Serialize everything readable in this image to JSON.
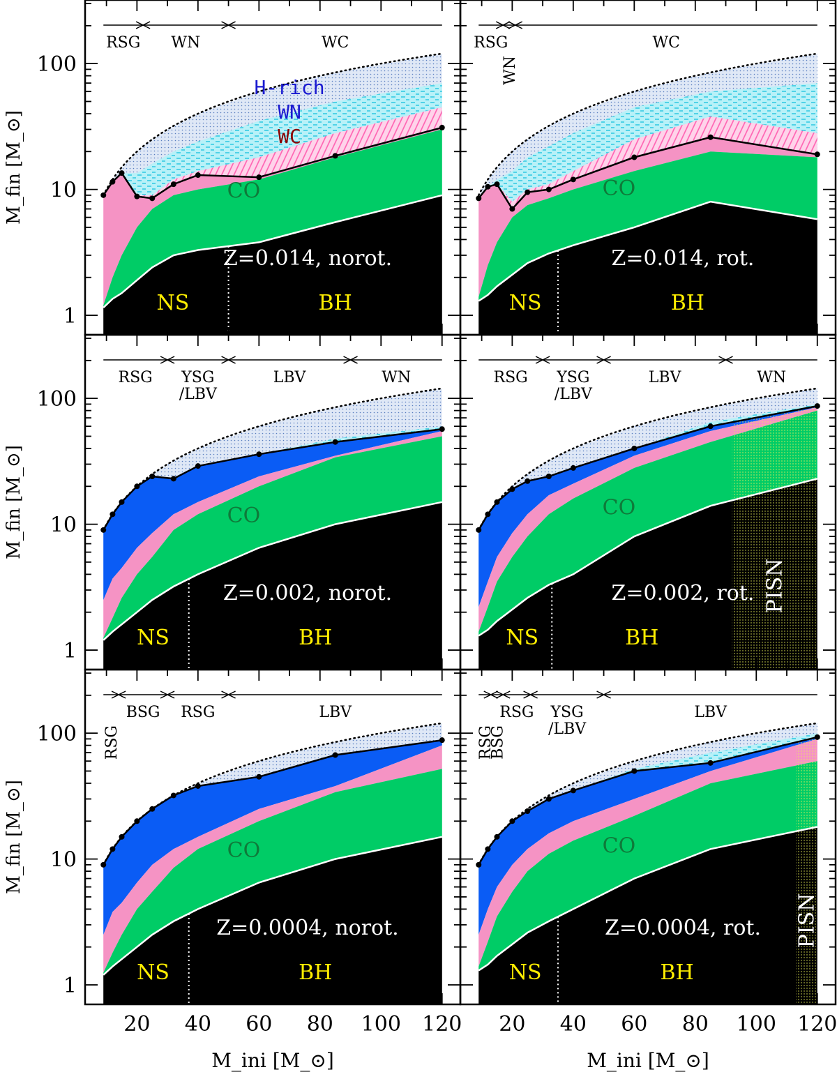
{
  "figure": {
    "y_axis_label": "M_fin [M_⊙]",
    "x_axis_label": "M_ini [M_⊙]",
    "region_labels": {
      "co": "CO",
      "ns": "NS",
      "bh": "BH",
      "pisn": "PISN"
    },
    "composition_legend": [
      "H-rich",
      "WN",
      "WC"
    ],
    "colors": {
      "remnant": "#000000",
      "co_core": "#00cc66",
      "he_layer": "#f593c4",
      "h_envelope": "#0a5cf5",
      "wn_ejecta": "#2ad0e8",
      "wc_ejecta": "#ff7fbf",
      "hrich_ejecta": "#7da2d6",
      "label_yellow": "#ffee00",
      "label_co": "#0f7a3a",
      "hrich_text": "#1a1ad0",
      "wn_text": "#1a1ad0",
      "wc_text": "#8b0000"
    }
  },
  "chart_data": [
    {
      "type": "area",
      "title": "Z=0.014, norot.",
      "x_ticks": [
        20,
        40,
        60,
        80,
        100,
        120
      ],
      "y_ticks": [
        1,
        10,
        100
      ],
      "xlim": [
        3,
        126
      ],
      "ylim": [
        0.7,
        320
      ],
      "log_y": true,
      "ns_bh_boundary": 50,
      "x": [
        9,
        12,
        15,
        20,
        25,
        32,
        40,
        60,
        85,
        120
      ],
      "m_final": [
        9,
        11.5,
        13.5,
        8.8,
        8.5,
        11,
        13,
        12.5,
        18.5,
        31
      ],
      "he_top": [
        9,
        11.5,
        13.5,
        8.8,
        8.5,
        11,
        13,
        12.5,
        18.5,
        31
      ],
      "co_top": [
        1.2,
        2,
        3,
        5,
        7,
        9,
        10,
        12,
        18,
        30
      ],
      "remnant": [
        1.15,
        1.35,
        1.5,
        1.9,
        2.4,
        3,
        3.3,
        3.8,
        5.5,
        9
      ],
      "ejecta_wn_top": [
        9,
        11.5,
        13.5,
        13.5,
        16,
        20,
        24,
        35,
        50,
        70
      ],
      "ejecta_wc_top": [
        9,
        11.5,
        13.5,
        9,
        9,
        12,
        14,
        18,
        28,
        45
      ],
      "phases": [
        {
          "label": "RSG",
          "from": 9,
          "to": 22
        },
        {
          "label": "WN",
          "from": 22,
          "to": 50
        },
        {
          "label": "WC",
          "from": 50,
          "to": 120
        }
      ],
      "show_composition_legend": true
    },
    {
      "type": "area",
      "title": "Z=0.014, rot.",
      "x_ticks": [
        20,
        40,
        60,
        80,
        100,
        120
      ],
      "y_ticks": [
        1,
        10,
        100
      ],
      "xlim": [
        3,
        126
      ],
      "ylim": [
        0.7,
        320
      ],
      "log_y": true,
      "ns_bh_boundary": 35,
      "x": [
        9,
        12,
        15,
        20,
        25,
        32,
        40,
        60,
        85,
        120
      ],
      "m_final": [
        8.5,
        10.5,
        11,
        7,
        9.5,
        10,
        12,
        18,
        26,
        19
      ],
      "he_top": [
        8.5,
        10.5,
        11,
        7,
        9.5,
        10,
        12,
        18,
        26,
        19
      ],
      "co_top": [
        1.4,
        2.5,
        3.8,
        6,
        7.5,
        8.5,
        10,
        14,
        20,
        18
      ],
      "remnant": [
        1.3,
        1.45,
        1.7,
        2.1,
        2.6,
        3.1,
        3.6,
        5,
        8,
        5.8
      ],
      "ejecta_wn_top": [
        8.5,
        10.5,
        12,
        14,
        18,
        22,
        28,
        45,
        60,
        70
      ],
      "ejecta_wc_top": [
        8.5,
        10.5,
        11,
        8,
        10,
        11,
        14,
        25,
        38,
        28
      ],
      "phases": [
        {
          "label": "RSG",
          "from": 9,
          "to": 17
        },
        {
          "label": "WN",
          "from": 17,
          "to": 21
        },
        {
          "label": "WC",
          "from": 21,
          "to": 120
        }
      ],
      "show_composition_legend": false
    },
    {
      "type": "area",
      "title": "Z=0.002, norot.",
      "x_ticks": [
        20,
        40,
        60,
        80,
        100,
        120
      ],
      "y_ticks": [
        1,
        10,
        100
      ],
      "xlim": [
        3,
        126
      ],
      "ylim": [
        0.7,
        320
      ],
      "log_y": true,
      "ns_bh_boundary": 37,
      "x": [
        9,
        12,
        15,
        20,
        25,
        32,
        40,
        60,
        85,
        120
      ],
      "m_final": [
        9,
        12,
        15,
        20,
        24,
        23,
        29,
        36,
        45,
        57
      ],
      "he_top": [
        2.5,
        3.7,
        4.5,
        6.5,
        8.5,
        12,
        15,
        24,
        35,
        55
      ],
      "co_top": [
        1.25,
        1.8,
        2.6,
        4,
        5.5,
        9,
        12,
        20,
        34,
        50
      ],
      "remnant": [
        1.2,
        1.4,
        1.6,
        2,
        2.5,
        3.2,
        4,
        6.5,
        10,
        15
      ],
      "ejecta_wn_top": [
        9,
        12,
        15,
        20,
        24,
        23,
        29,
        36,
        48,
        60
      ],
      "phases": [
        {
          "label": "RSG",
          "from": 9,
          "to": 30
        },
        {
          "label": "YSG/LBV",
          "from": 30,
          "to": 50
        },
        {
          "label": "LBV",
          "from": 50,
          "to": 90
        },
        {
          "label": "WN",
          "from": 90,
          "to": 120
        }
      ],
      "show_composition_legend": false
    },
    {
      "type": "area",
      "title": "Z=0.002, rot.",
      "x_ticks": [
        20,
        40,
        60,
        80,
        100,
        120
      ],
      "y_ticks": [
        1,
        10,
        100
      ],
      "xlim": [
        3,
        126
      ],
      "ylim": [
        0.7,
        320
      ],
      "log_y": true,
      "ns_bh_boundary": 33,
      "pisn_from": 92,
      "x": [
        9,
        12,
        15,
        20,
        25,
        32,
        40,
        60,
        85,
        120
      ],
      "m_final": [
        9,
        12,
        15,
        19,
        22,
        24,
        28,
        40,
        60,
        87
      ],
      "he_top": [
        2.2,
        3.5,
        5.5,
        8.5,
        12,
        17,
        21,
        35,
        55,
        85
      ],
      "co_top": [
        1.4,
        2.2,
        3.5,
        5.5,
        8,
        12,
        16,
        28,
        45,
        80
      ],
      "remnant": [
        1.3,
        1.45,
        1.7,
        2.1,
        2.6,
        3.3,
        4,
        8,
        14,
        23
      ],
      "ejecta_wn_top": [
        9,
        12,
        15,
        19,
        22,
        24,
        28,
        40,
        65,
        90
      ],
      "phases": [
        {
          "label": "RSG",
          "from": 9,
          "to": 30
        },
        {
          "label": "YSG/LBV",
          "from": 30,
          "to": 50
        },
        {
          "label": "LBV",
          "from": 50,
          "to": 90
        },
        {
          "label": "WN",
          "from": 90,
          "to": 120
        }
      ],
      "show_composition_legend": false
    },
    {
      "type": "area",
      "title": "Z=0.0004, norot.",
      "x_ticks": [
        20,
        40,
        60,
        80,
        100,
        120
      ],
      "y_ticks": [
        1,
        10,
        100
      ],
      "xlim": [
        3,
        126
      ],
      "ylim": [
        0.7,
        320
      ],
      "log_y": true,
      "ns_bh_boundary": 37,
      "x": [
        9,
        12,
        15,
        20,
        25,
        32,
        40,
        60,
        85,
        120
      ],
      "m_final": [
        9,
        12,
        15,
        20,
        25,
        32,
        38,
        45,
        67,
        88
      ],
      "he_top": [
        2.5,
        3.8,
        4.5,
        6.5,
        9,
        12,
        15,
        25,
        38,
        80
      ],
      "co_top": [
        1.25,
        1.8,
        2.5,
        4,
        5.5,
        8.5,
        12,
        20,
        34,
        52
      ],
      "remnant": [
        1.2,
        1.4,
        1.6,
        2,
        2.5,
        3.2,
        4,
        6.5,
        10,
        15
      ],
      "ejecta_wn_top": [
        9,
        12,
        15,
        20,
        25,
        32,
        38,
        45,
        67,
        88
      ],
      "phases": [
        {
          "label": "RSG",
          "from": 9,
          "to": 14
        },
        {
          "label": "BSG",
          "from": 14,
          "to": 30
        },
        {
          "label": "RSG",
          "from": 30,
          "to": 50
        },
        {
          "label": "LBV",
          "from": 50,
          "to": 120
        }
      ],
      "show_composition_legend": false
    },
    {
      "type": "area",
      "title": "Z=0.0004, rot.",
      "x_ticks": [
        20,
        40,
        60,
        80,
        100,
        120
      ],
      "y_ticks": [
        1,
        10,
        100
      ],
      "xlim": [
        3,
        126
      ],
      "ylim": [
        0.7,
        320
      ],
      "log_y": true,
      "ns_bh_boundary": 35,
      "pisn_from": 113,
      "x": [
        9,
        12,
        15,
        20,
        25,
        32,
        40,
        60,
        85,
        120
      ],
      "m_final": [
        9,
        12,
        15,
        20,
        24,
        30,
        35,
        50,
        58,
        93
      ],
      "he_top": [
        2.5,
        4,
        6,
        9,
        12,
        16,
        20,
        30,
        50,
        90
      ],
      "co_top": [
        1.4,
        2.2,
        3.5,
        5.5,
        8,
        11,
        14,
        22,
        40,
        60
      ],
      "remnant": [
        1.3,
        1.45,
        1.7,
        2.1,
        2.6,
        3.2,
        4,
        7,
        12,
        18
      ],
      "ejecta_wn_top": [
        9,
        12,
        15,
        20,
        24,
        30,
        35,
        52,
        70,
        100
      ],
      "phases": [
        {
          "label": "RSG",
          "from": 9,
          "to": 13
        },
        {
          "label": "BSG",
          "from": 13,
          "to": 17
        },
        {
          "label": "RSG",
          "from": 17,
          "to": 26
        },
        {
          "label": "YSG/LBV",
          "from": 26,
          "to": 50
        },
        {
          "label": "LBV",
          "from": 50,
          "to": 120
        }
      ],
      "show_composition_legend": false
    }
  ]
}
